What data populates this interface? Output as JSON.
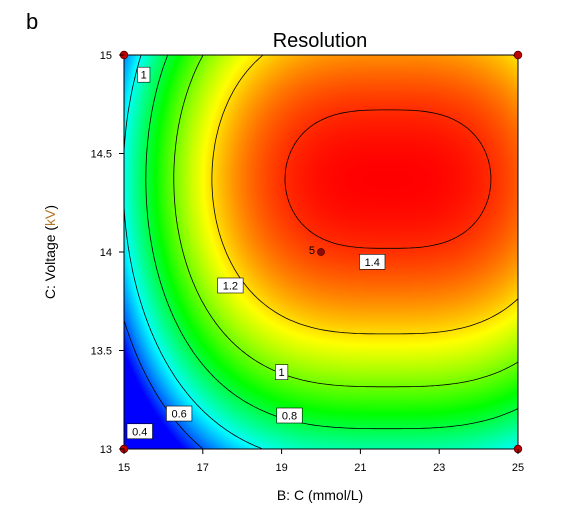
{
  "chart_data": {
    "type": "heatmap",
    "panel_label": "b",
    "title": "Resolution",
    "xlabel": "B: C (mmol/L)",
    "ylabel_prefix": "C: Voltage (",
    "ylabel_unit": "kV",
    "ylabel_suffix": ")",
    "xlim": [
      15,
      25
    ],
    "ylim": [
      13,
      15
    ],
    "xticks": [
      "15",
      "17",
      "19",
      "21",
      "23",
      "25"
    ],
    "yticks": [
      "13",
      "13.5",
      "14",
      "14.5",
      "15"
    ],
    "grid": false,
    "model": {
      "center": [
        21.7,
        14.37
      ],
      "peak": 1.45,
      "ax": 0.0028,
      "ay": 0.405,
      "bxy": 0.0
    },
    "contours": [
      {
        "level": 1.4,
        "label": "1.4",
        "at": [
          21.3,
          13.95
        ]
      },
      {
        "level": 1.2,
        "label": "1.2",
        "at": [
          17.7,
          13.83
        ]
      },
      {
        "level": 1.0,
        "label": "1",
        "at": [
          15.5,
          14.9
        ]
      },
      {
        "level": 1.0,
        "label": "1",
        "at": [
          19.0,
          13.39
        ]
      },
      {
        "level": 0.8,
        "label": "0.8",
        "at": [
          19.2,
          13.17
        ]
      },
      {
        "level": 0.6,
        "label": "0.6",
        "at": [
          16.4,
          13.18
        ]
      },
      {
        "level": 0.4,
        "label": "0.4",
        "at": [
          15.4,
          13.09
        ]
      }
    ],
    "design_points": [
      {
        "x": 15,
        "y": 15
      },
      {
        "x": 25,
        "y": 15
      },
      {
        "x": 15,
        "y": 13
      },
      {
        "x": 25,
        "y": 13
      },
      {
        "x": 20,
        "y": 14,
        "label": "5"
      }
    ],
    "colormap": [
      "#0000ff",
      "#00ffff",
      "#00ff00",
      "#ffff00",
      "#ff0000"
    ]
  }
}
